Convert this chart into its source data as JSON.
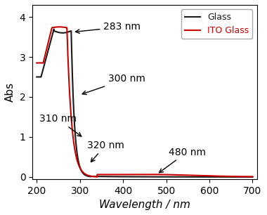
{
  "xlabel": "Wavelength / nm",
  "ylabel": "Abs",
  "xlim": [
    190,
    710
  ],
  "ylim": [
    -0.05,
    4.3
  ],
  "xticks": [
    200,
    300,
    400,
    500,
    600,
    700
  ],
  "yticks": [
    0,
    1,
    2,
    3,
    4
  ],
  "legend_labels": [
    "Glass",
    "ITO Glass"
  ],
  "line_colors": [
    "#1a1a1a",
    "#cc0000"
  ],
  "axis_fontsize": 11,
  "tick_fontsize": 10,
  "annot_fontsize": 10
}
